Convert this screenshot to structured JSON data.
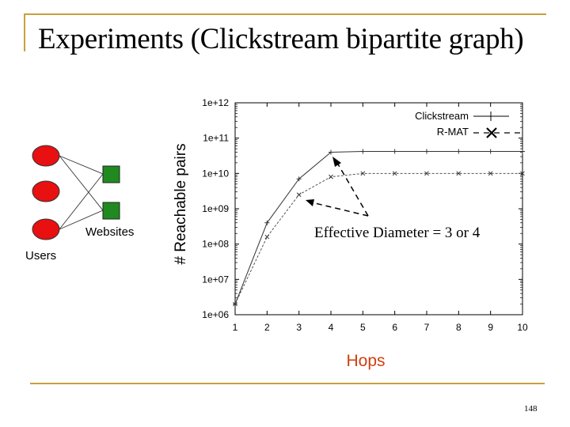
{
  "slide": {
    "title": "Experiments (Clickstream bipartite graph)",
    "page_number": "148",
    "accent_color": "#c8a03c"
  },
  "diagram": {
    "users_label": "Users",
    "websites_label": "Websites",
    "user_node_color": "#e81010",
    "website_node_color": "#208a20",
    "edges": [
      [
        0,
        0
      ],
      [
        0,
        1
      ],
      [
        2,
        0
      ],
      [
        2,
        1
      ]
    ]
  },
  "chart_data": {
    "type": "line",
    "x": [
      1,
      2,
      3,
      4,
      5,
      6,
      7,
      8,
      9,
      10
    ],
    "series": [
      {
        "name": "Clickstream",
        "style": "solid, + markers",
        "values": [
          2000000.0,
          400000000.0,
          7000000000.0,
          40000000000.0,
          42000000000.0,
          42000000000.0,
          42000000000.0,
          42000000000.0,
          42000000000.0,
          42000000000.0
        ]
      },
      {
        "name": "R-MAT",
        "style": "dashed, x markers",
        "values": [
          2000000.0,
          160000000.0,
          2500000000.0,
          8000000000.0,
          10000000000.0,
          10000000000.0,
          10000000000.0,
          10000000000.0,
          10000000000.0,
          10000000000.0
        ]
      }
    ],
    "xlabel": "Hops",
    "ylabel": "# Reachable pairs",
    "yscale": "log",
    "ylim": [
      1000000.0,
      1000000000000.0
    ],
    "xlim": [
      1,
      10
    ],
    "xticks": [
      "1",
      "2",
      "3",
      "4",
      "5",
      "6",
      "7",
      "8",
      "9",
      "10"
    ],
    "yticks": [
      "1e+06",
      "1e+07",
      "1e+08",
      "1e+09",
      "1e+10",
      "1e+11",
      "1e+12"
    ],
    "legend_position": "top-right",
    "annotation": "Effective Diameter = 3 or 4",
    "grid": false
  }
}
